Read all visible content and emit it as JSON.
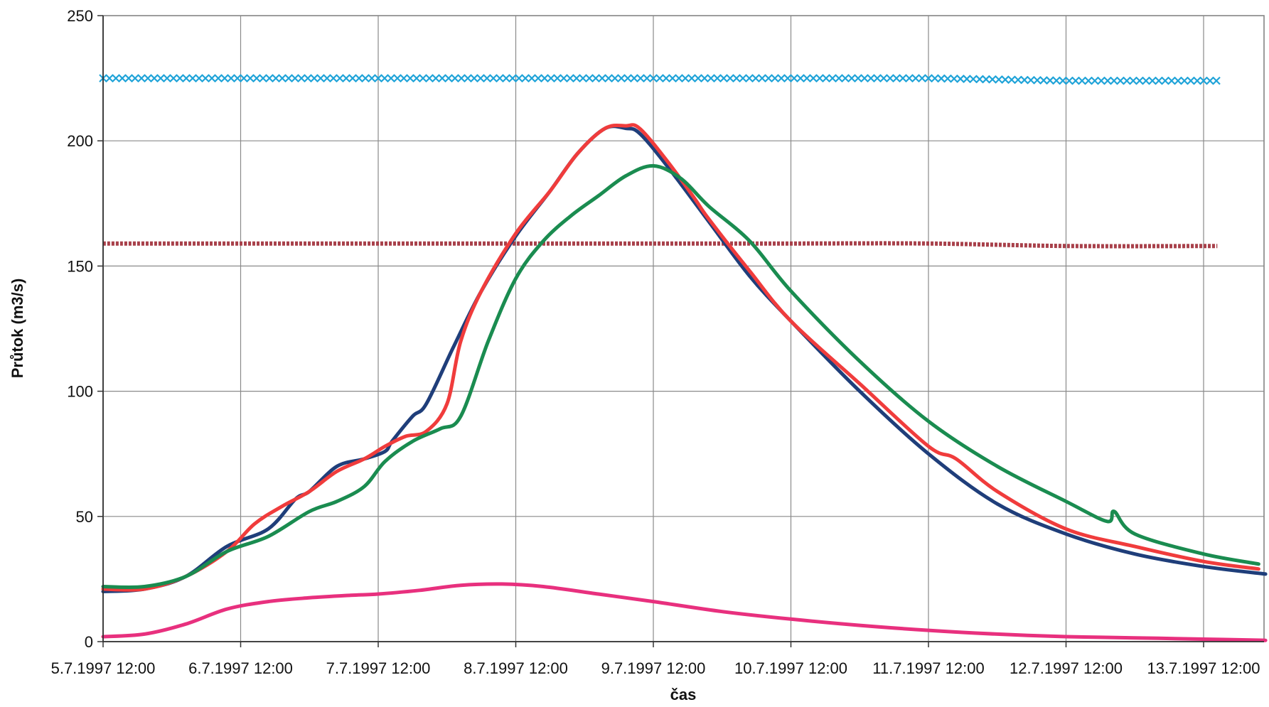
{
  "chart_data": {
    "type": "line",
    "title": "",
    "xlabel": "čas",
    "ylabel": "Průtok (m3/s)",
    "grid": true,
    "legend": "none",
    "ylim": [
      0,
      250
    ],
    "xlim": [
      0,
      8.5
    ],
    "y_ticks": [
      0,
      50,
      100,
      150,
      200,
      250
    ],
    "y_tick_labels": [
      "0",
      "50",
      "100",
      "150",
      "200",
      "250"
    ],
    "x_unit": "days since 5.7.1997 12:00",
    "x_ticks": [
      0,
      1,
      2,
      3,
      4,
      5,
      6,
      7,
      8
    ],
    "x_tick_labels": [
      "5.7.1997 12:00",
      "6.7.1997 12:00",
      "7.7.1997 12:00",
      "8.7.1997 12:00",
      "9.7.1997 12:00",
      "10.7.1997 12:00",
      "11.7.1997 12:00",
      "12.7.1997 12:00",
      "13.7.1997 12:00"
    ],
    "series": [
      {
        "color": "#1fa3d8",
        "style": "x-markers",
        "x": [
          0,
          1,
          2,
          3,
          4,
          5,
          6,
          7,
          8.1
        ],
        "y": [
          225,
          225,
          225,
          225,
          225,
          225,
          225,
          224,
          224
        ]
      },
      {
        "color": "#a8404a",
        "style": "dotted",
        "x": [
          0,
          1,
          2,
          3,
          4,
          5,
          6,
          7,
          8.1
        ],
        "y": [
          159,
          159,
          159,
          159,
          159,
          159,
          159,
          158,
          158
        ]
      },
      {
        "color": "#1f3e7a",
        "style": "solid",
        "x": [
          0,
          0.3,
          0.6,
          0.9,
          1.2,
          1.4,
          1.5,
          1.7,
          1.9,
          2.05,
          2.1,
          2.25,
          2.35,
          2.55,
          2.75,
          3.0,
          3.25,
          3.45,
          3.65,
          3.8,
          3.9,
          4.1,
          4.4,
          4.7,
          5.0,
          5.5,
          6.0,
          6.5,
          7.0,
          7.5,
          8.0,
          8.45
        ],
        "y": [
          20,
          21,
          26,
          38,
          45,
          57,
          60,
          70,
          73,
          76,
          80,
          90,
          95,
          118,
          140,
          162,
          180,
          195,
          205,
          205,
          203,
          190,
          168,
          146,
          128,
          100,
          75,
          55,
          43,
          35,
          30,
          27
        ]
      },
      {
        "color": "#f03c3c",
        "style": "solid",
        "x": [
          0,
          0.3,
          0.6,
          0.9,
          1.1,
          1.3,
          1.5,
          1.7,
          1.9,
          2.05,
          2.2,
          2.35,
          2.5,
          2.6,
          2.75,
          3.0,
          3.25,
          3.45,
          3.65,
          3.8,
          3.9,
          4.1,
          4.3,
          4.4,
          4.7,
          5.0,
          5.5,
          6.0,
          6.2,
          6.5,
          7.0,
          7.5,
          8.0,
          8.4
        ],
        "y": [
          21,
          21,
          26,
          36,
          47,
          54,
          60,
          68,
          73,
          78,
          82,
          84,
          95,
          120,
          140,
          163,
          180,
          195,
          205,
          206,
          205,
          192,
          177,
          169,
          148,
          128,
          103,
          78,
          73,
          60,
          45,
          38,
          32,
          29
        ]
      },
      {
        "color": "#1a8c50",
        "style": "solid",
        "x": [
          0,
          0.3,
          0.6,
          0.9,
          1.2,
          1.5,
          1.7,
          1.9,
          2.05,
          2.25,
          2.45,
          2.6,
          2.8,
          3.0,
          3.2,
          3.4,
          3.6,
          3.8,
          4.0,
          4.2,
          4.4,
          4.7,
          5.0,
          5.5,
          6.0,
          6.5,
          7.0,
          7.3,
          7.35,
          7.5,
          8.0,
          8.4
        ],
        "y": [
          22,
          22,
          26,
          36,
          42,
          52,
          56,
          62,
          72,
          80,
          85,
          90,
          120,
          145,
          160,
          170,
          178,
          186,
          190,
          185,
          174,
          160,
          140,
          112,
          88,
          70,
          56,
          48,
          52,
          43,
          35,
          31
        ]
      },
      {
        "color": "#e8307e",
        "style": "solid",
        "x": [
          0,
          0.3,
          0.6,
          0.9,
          1.2,
          1.5,
          1.8,
          2.0,
          2.3,
          2.6,
          2.9,
          3.2,
          3.6,
          4.0,
          4.5,
          5.0,
          5.5,
          6.0,
          6.5,
          7.0,
          7.5,
          8.0,
          8.45
        ],
        "y": [
          2,
          3,
          7,
          13,
          16,
          17.5,
          18.5,
          19,
          20.5,
          22.5,
          23,
          22,
          19,
          16,
          12,
          9,
          6.5,
          4.5,
          3,
          2,
          1.5,
          1,
          0.5
        ]
      }
    ]
  }
}
